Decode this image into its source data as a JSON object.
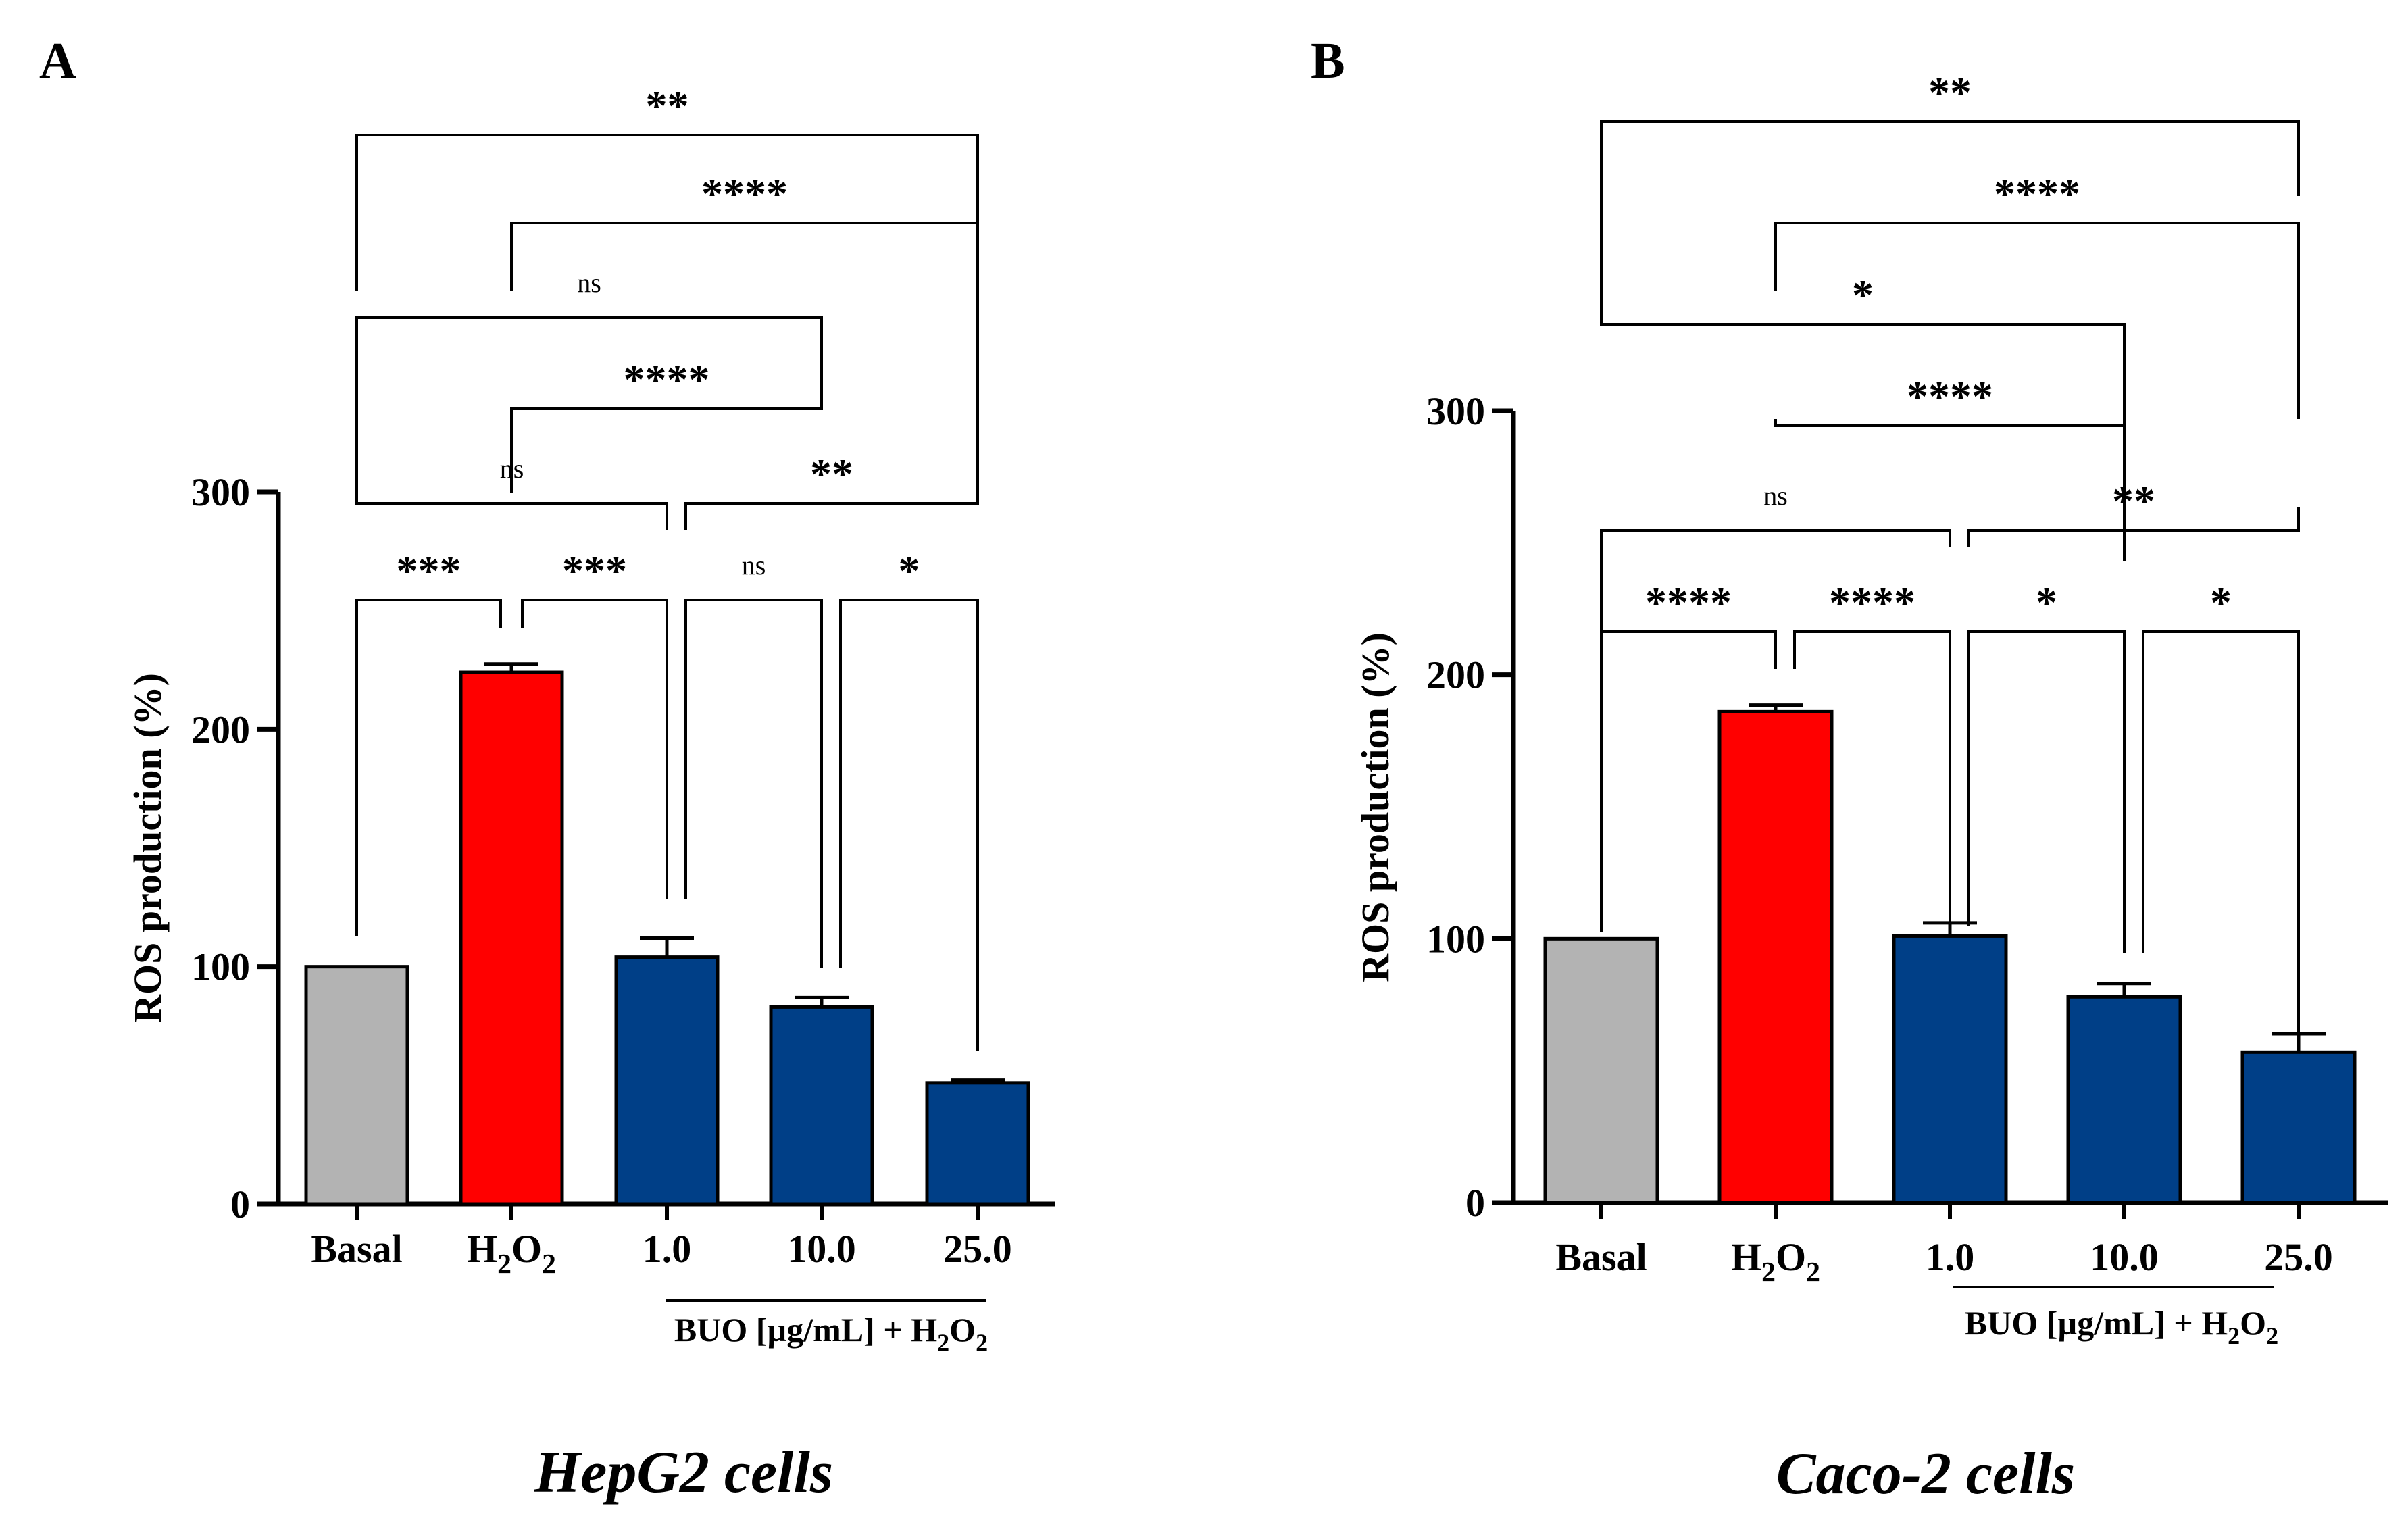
{
  "chart_data": [
    {
      "panel_label": "A",
      "type": "bar",
      "title": "HepG2 cells",
      "ylabel": "ROS production (%)",
      "ylim": [
        0,
        300
      ],
      "yticks": [
        "0",
        "100",
        "200",
        "300"
      ],
      "categories": [
        {
          "main": "Basal",
          "sub": "",
          "tail": ""
        },
        {
          "main": "H",
          "sub": "2",
          "tail": "O",
          "sub2": "2"
        },
        {
          "main": "1.0",
          "sub": "",
          "tail": ""
        },
        {
          "main": "10.0",
          "sub": "",
          "tail": ""
        },
        {
          "main": "25.0",
          "sub": "",
          "tail": ""
        }
      ],
      "values": [
        100,
        224,
        104,
        83,
        51
      ],
      "errors": [
        0,
        3.5,
        8,
        4,
        1.2
      ],
      "bar_colors": [
        "#b3b3b3",
        "#ff0000",
        "#003f87",
        "#003f87",
        "#003f87"
      ],
      "group_label": {
        "main": "BUO [µg/mL] + H",
        "sub": "2",
        "tail": "O",
        "sub2": "2"
      },
      "significance": [
        {
          "from": 0,
          "to": 4,
          "label": "**"
        },
        {
          "from": 1,
          "to": 4,
          "label": "****"
        },
        {
          "from": 0,
          "to": 3,
          "label": "ns"
        },
        {
          "from": 1,
          "to": 3,
          "label": "****"
        },
        {
          "from": 0,
          "to": 2,
          "label": "ns"
        },
        {
          "from": 2,
          "to": 4,
          "label": "**"
        },
        {
          "from": 0,
          "to": 1,
          "label": "***"
        },
        {
          "from": 1,
          "to": 2,
          "label": "***"
        },
        {
          "from": 2,
          "to": 3,
          "label": "ns"
        },
        {
          "from": 3,
          "to": 4,
          "label": "*"
        }
      ]
    },
    {
      "panel_label": "B",
      "type": "bar",
      "title": "Caco-2 cells",
      "ylabel": "ROS production (%)",
      "ylim": [
        0,
        300
      ],
      "yticks": [
        "0",
        "100",
        "200",
        "300"
      ],
      "categories": [
        {
          "main": "Basal",
          "sub": "",
          "tail": ""
        },
        {
          "main": "H",
          "sub": "2",
          "tail": "O",
          "sub2": "2"
        },
        {
          "main": "1.0",
          "sub": "",
          "tail": ""
        },
        {
          "main": "10.0",
          "sub": "",
          "tail": ""
        },
        {
          "main": "25.0",
          "sub": "",
          "tail": ""
        }
      ],
      "values": [
        100,
        186,
        101,
        78,
        57
      ],
      "errors": [
        0,
        2.5,
        5,
        5,
        7
      ],
      "bar_colors": [
        "#b3b3b3",
        "#ff0000",
        "#003f87",
        "#003f87",
        "#003f87"
      ],
      "group_label": {
        "main": "BUO [µg/mL] + H",
        "sub": "2",
        "tail": "O",
        "sub2": "2"
      },
      "significance": [
        {
          "from": 0,
          "to": 4,
          "label": "**"
        },
        {
          "from": 1,
          "to": 4,
          "label": "****"
        },
        {
          "from": 0,
          "to": 3,
          "label": "*"
        },
        {
          "from": 1,
          "to": 3,
          "label": "****"
        },
        {
          "from": 0,
          "to": 2,
          "label": "ns"
        },
        {
          "from": 2,
          "to": 4,
          "label": "**"
        },
        {
          "from": 0,
          "to": 1,
          "label": "****"
        },
        {
          "from": 1,
          "to": 2,
          "label": "****"
        },
        {
          "from": 2,
          "to": 3,
          "label": "*"
        },
        {
          "from": 3,
          "to": 4,
          "label": "*"
        }
      ]
    }
  ]
}
